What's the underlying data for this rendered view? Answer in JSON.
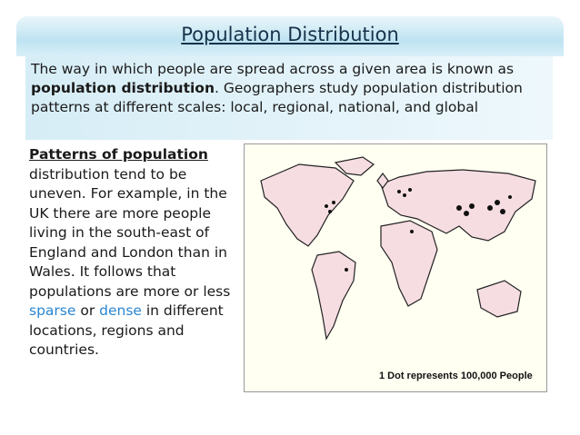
{
  "header": {
    "title": "Population Distribution"
  },
  "intro": {
    "before": "The way in which people are spread across a given area is known as ",
    "bold": "population distribution",
    "after": ". Geographers study population distribution patterns at different scales: local, regional, national, and global"
  },
  "body": {
    "heading": "Patterns of population",
    "text1": " distribution tend to be uneven. For example, in the UK there are more people living in the south-east of England and London than in Wales. It follows that populations are more or less ",
    "sparse": "sparse",
    "text2": " or ",
    "dense": "dense",
    "text3": " in different locations, regions and countries."
  },
  "map": {
    "caption": "1 Dot represents 100,000 People"
  }
}
